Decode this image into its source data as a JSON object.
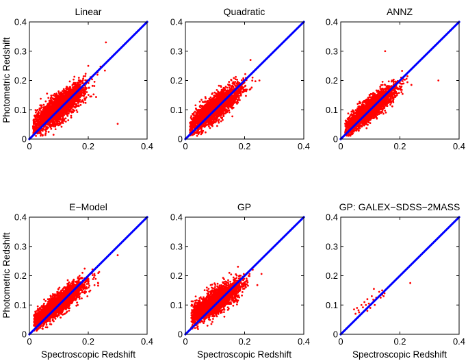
{
  "figure": {
    "ylabel": "Photometric Redshift",
    "xlabel": "Spectroscopic Redshift"
  },
  "chart_data": [
    {
      "type": "scatter",
      "title": "Linear",
      "xlabel": "",
      "ylabel": "Photometric Redshift",
      "xlim": [
        0,
        0.4
      ],
      "ylim": [
        0,
        0.4
      ],
      "xticks": [
        "0",
        "0.2",
        "0.4"
      ],
      "yticks": [
        "0",
        "0.1",
        "0.2",
        "0.3",
        "0.4"
      ],
      "series": [
        {
          "name": "galaxies",
          "color": "#ff0000",
          "count": 2600,
          "trend": [
            0.035,
            0.72
          ],
          "spread": 0.022,
          "x_mean": 0.1,
          "x_sd": 0.042,
          "x_range": [
            0.012,
            0.3
          ]
        },
        {
          "name": "y = x",
          "color": "#0000ff",
          "points": [
            [
              0,
              0
            ],
            [
              0.4,
              0.4
            ]
          ]
        }
      ],
      "outliers": [
        [
          0.3,
          0.052
        ],
        [
          0.26,
          0.33
        ],
        [
          0.2,
          0.25
        ]
      ]
    },
    {
      "type": "scatter",
      "title": "Quadratic",
      "xlabel": "",
      "ylabel": "",
      "xlim": [
        0,
        0.4
      ],
      "ylim": [
        0,
        0.4
      ],
      "xticks": [
        "0",
        "0.2",
        "0.4"
      ],
      "yticks": [
        "0",
        "0.1",
        "0.2",
        "0.3",
        "0.4"
      ],
      "series": [
        {
          "name": "galaxies",
          "color": "#ff0000",
          "count": 2600,
          "trend": [
            0.03,
            0.75
          ],
          "spread": 0.02,
          "x_mean": 0.1,
          "x_sd": 0.042,
          "x_range": [
            0.015,
            0.28
          ]
        },
        {
          "name": "y = x",
          "color": "#0000ff",
          "points": [
            [
              0,
              0
            ],
            [
              0.4,
              0.4
            ]
          ]
        }
      ],
      "outliers": [
        [
          0.22,
          0.27
        ],
        [
          0.25,
          0.2
        ]
      ]
    },
    {
      "type": "scatter",
      "title": "ANNZ",
      "xlabel": "",
      "ylabel": "",
      "xlim": [
        0,
        0.4
      ],
      "ylim": [
        0,
        0.4
      ],
      "xticks": [
        "0",
        "0.2",
        "0.4"
      ],
      "yticks": [
        "0",
        "0.1",
        "0.2",
        "0.3",
        "0.4"
      ],
      "series": [
        {
          "name": "galaxies",
          "color": "#ff0000",
          "count": 2600,
          "trend": [
            0.025,
            0.78
          ],
          "spread": 0.018,
          "x_mean": 0.1,
          "x_sd": 0.042,
          "x_range": [
            0.015,
            0.3
          ]
        },
        {
          "name": "y = x",
          "color": "#0000ff",
          "points": [
            [
              0,
              0
            ],
            [
              0.4,
              0.4
            ]
          ]
        }
      ],
      "outliers": [
        [
          0.15,
          0.3
        ],
        [
          0.33,
          0.2
        ]
      ]
    },
    {
      "type": "scatter",
      "title": "E−Model",
      "xlabel": "Spectroscopic Redshift",
      "ylabel": "Photometric Redshift",
      "xlim": [
        0,
        0.4
      ],
      "ylim": [
        0,
        0.4
      ],
      "xticks": [
        "0",
        "0.2",
        "0.4"
      ],
      "yticks": [
        "0",
        "0.1",
        "0.2",
        "0.3",
        "0.4"
      ],
      "series": [
        {
          "name": "galaxies",
          "color": "#ff0000",
          "count": 2600,
          "trend": [
            0.03,
            0.75
          ],
          "spread": 0.017,
          "x_mean": 0.1,
          "x_sd": 0.042,
          "x_range": [
            0.015,
            0.3
          ]
        },
        {
          "name": "y = x",
          "color": "#0000ff",
          "points": [
            [
              0,
              0
            ],
            [
              0.4,
              0.4
            ]
          ]
        }
      ],
      "outliers": [
        [
          0.3,
          0.27
        ]
      ]
    },
    {
      "type": "scatter",
      "title": "GP",
      "xlabel": "Spectroscopic Redshift",
      "ylabel": "",
      "xlim": [
        0,
        0.4
      ],
      "ylim": [
        0,
        0.4
      ],
      "xticks": [
        "0",
        "0.2",
        "0.4"
      ],
      "yticks": [
        "0",
        "0.1",
        "0.2",
        "0.3",
        "0.4"
      ],
      "series": [
        {
          "name": "galaxies",
          "color": "#ff0000",
          "count": 2600,
          "trend": [
            0.045,
            0.65
          ],
          "spread": 0.02,
          "x_mean": 0.1,
          "x_sd": 0.042,
          "x_range": [
            0.02,
            0.28
          ]
        },
        {
          "name": "y = x",
          "color": "#0000ff",
          "points": [
            [
              0,
              0
            ],
            [
              0.4,
              0.4
            ]
          ]
        }
      ],
      "outliers": []
    },
    {
      "type": "scatter",
      "title": "GP: GALEX−SDSS−2MASS",
      "xlabel": "Spectroscopic Redshift",
      "ylabel": "",
      "xlim": [
        0,
        0.4
      ],
      "ylim": [
        0,
        0.4
      ],
      "xticks": [
        "0",
        "0.2",
        "0.4"
      ],
      "yticks": [
        "0",
        "0.1",
        "0.2",
        "0.3",
        "0.4"
      ],
      "series": [
        {
          "name": "galaxies",
          "color": "#ff0000",
          "points": [
            [
              0.045,
              0.085
            ],
            [
              0.05,
              0.07
            ],
            [
              0.055,
              0.09
            ],
            [
              0.06,
              0.082
            ],
            [
              0.062,
              0.075
            ],
            [
              0.07,
              0.1
            ],
            [
              0.075,
              0.092
            ],
            [
              0.08,
              0.11
            ],
            [
              0.085,
              0.1
            ],
            [
              0.09,
              0.08
            ],
            [
              0.09,
              0.12
            ],
            [
              0.095,
              0.105
            ],
            [
              0.1,
              0.09
            ],
            [
              0.105,
              0.13
            ],
            [
              0.11,
              0.118
            ],
            [
              0.112,
              0.155
            ],
            [
              0.115,
              0.1
            ],
            [
              0.12,
              0.125
            ],
            [
              0.13,
              0.145
            ],
            [
              0.135,
              0.125
            ],
            [
              0.14,
              0.15
            ],
            [
              0.14,
              0.135
            ],
            [
              0.145,
              0.13
            ],
            [
              0.148,
              0.14
            ],
            [
              0.235,
              0.175
            ]
          ]
        },
        {
          "name": "y = x",
          "color": "#0000ff",
          "points": [
            [
              0,
              0
            ],
            [
              0.4,
              0.4
            ]
          ]
        }
      ],
      "outliers": []
    }
  ]
}
